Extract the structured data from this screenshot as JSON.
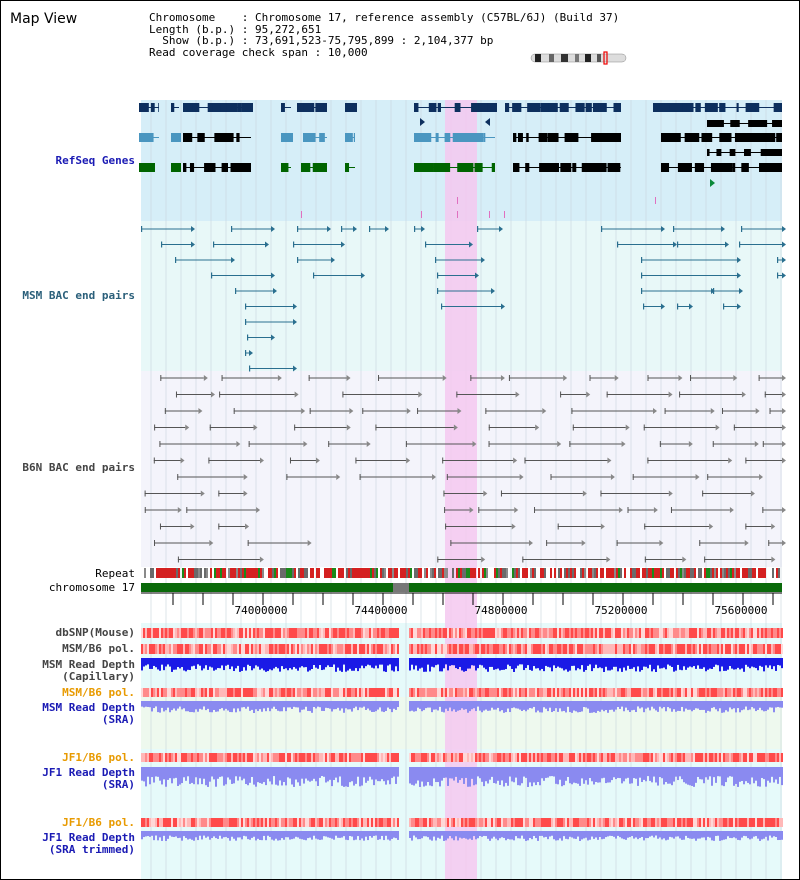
{
  "header": {
    "title": "Map View",
    "chromosome_label": "Chromosome",
    "chromosome_value": "Chromosome 17, reference assembly (C57BL/6J) (Build 37)",
    "length_label": "Length (b.p.)",
    "length_value": "95,272,651",
    "show_label": "Show (b.p.)",
    "show_value": "73,691,523-75,795,899 : 2,104,377 bp",
    "coverage_label": "Read coverage check span",
    "coverage_value": "10,000"
  },
  "tracks": {
    "refseq": "RefSeq Genes",
    "msm_bac": "MSM BAC end pairs",
    "b6n_bac": "B6N BAC end pairs",
    "repeat": "Repeat",
    "chromosome": "chromosome 17",
    "dbsnp": "dbSNP(Mouse)",
    "msm_b6_pol_1": "MSM/B6 pol.",
    "msm_read_depth_cap": "MSM Read Depth\n(Capillary)",
    "msm_b6_pol_2": "MSM/B6 pol.",
    "msm_read_depth_sra": "MSM Read Depth\n(SRA)",
    "jf1_b6_pol_1": "JF1/B6 pol.",
    "jf1_read_depth_sra": "JF1 Read Depth\n(SRA)",
    "jf1_b6_pol_2": "JF1/B6 pol.",
    "jf1_read_depth_trim": "JF1 Read Depth\n(SRA trimmed)"
  },
  "axis": {
    "ticks": [
      "74000000",
      "74400000",
      "74800000",
      "75200000",
      "75600000"
    ]
  },
  "colors": {
    "refseq_bg": "#d6eef8",
    "bac_bg": "#e8f8f8",
    "b6n_bg": "#f4f4fb",
    "highlight": "#f5c8f0",
    "gene_navy": "#0d2f5e",
    "gene_steel": "#4a96c0",
    "gene_green": "#006400",
    "msm_bac": "#2a6f8f",
    "b6n_bac": "#555555",
    "depth_blue": "#1a1ae6",
    "depth_light": "#8a8af0",
    "pol_red": "#ff5050",
    "chrom_green": "#0a6a0a"
  }
}
